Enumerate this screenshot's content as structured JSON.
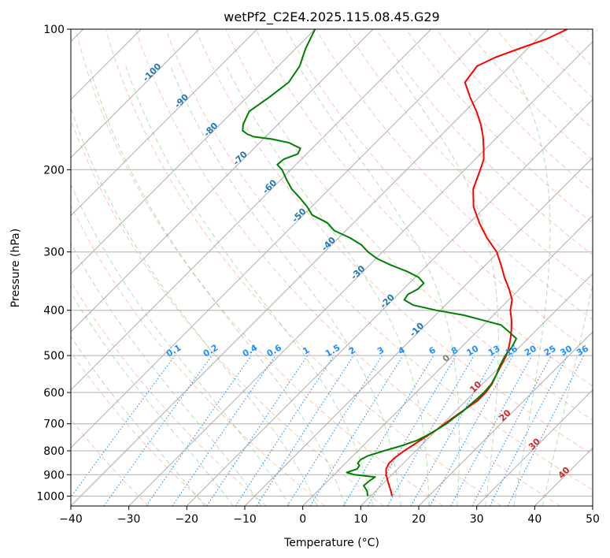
{
  "chart_data": {
    "type": "line",
    "subtype": "skew-t log-p diagram",
    "title": "wetPf2_C2E4.2025.115.08.45.G29",
    "xlabel": "Temperature (°C)",
    "ylabel": "Pressure (hPa)",
    "xlim": [
      -40,
      50
    ],
    "ylim": [
      1050,
      100
    ],
    "y_scale": "log",
    "grid": true,
    "x_ticks": [
      "−40",
      "−30",
      "−20",
      "−10",
      "0",
      "10",
      "20",
      "30",
      "40",
      "50"
    ],
    "x_tick_values": [
      -40,
      -30,
      -20,
      -10,
      0,
      10,
      20,
      30,
      40,
      50
    ],
    "y_ticks": [
      "100",
      "200",
      "300",
      "400",
      "500",
      "600",
      "700",
      "800",
      "900",
      "1000"
    ],
    "y_tick_values": [
      100,
      200,
      300,
      400,
      500,
      600,
      700,
      800,
      900,
      1000
    ],
    "colors": {
      "temperature": "#ff0000",
      "dewpoint": "#008000",
      "isotherm_label": "#1f77b4",
      "dry_adiabat": "#ff7f50",
      "moist_adiabat": "#2ca02c",
      "mixing_ratio": "#1e90ff",
      "isotherm_warm_label": "#d62728",
      "grid": "#b0b0b0"
    },
    "isotherm_labels": [
      "-100",
      "-90",
      "-80",
      "-70",
      "-60",
      "-50",
      "-40",
      "-30",
      "-20",
      "-10",
      "0",
      "10",
      "20",
      "30",
      "40"
    ],
    "isotherm_label_values": [
      -100,
      -90,
      -80,
      -70,
      -60,
      -50,
      -40,
      -30,
      -20,
      -10,
      0,
      10,
      20,
      30,
      40
    ],
    "mixing_ratio_labels": [
      "0.1",
      "0.2",
      "0.4",
      "0.6",
      "1",
      "1.5",
      "2",
      "3",
      "4",
      "6",
      "8",
      "10",
      "13",
      "16",
      "20",
      "25",
      "30",
      "36"
    ],
    "mixing_ratio_values": [
      0.1,
      0.2,
      0.4,
      0.6,
      1,
      1.5,
      2,
      3,
      4,
      6,
      8,
      10,
      13,
      16,
      20,
      25,
      30,
      36
    ],
    "series": [
      {
        "key": "temperature",
        "p": [
          1000,
          975,
          950,
          925,
          900,
          875,
          850,
          825,
          800,
          775,
          750,
          725,
          700,
          675,
          650,
          625,
          600,
          575,
          550,
          525,
          500,
          480,
          460,
          440,
          420,
          400,
          380,
          360,
          340,
          320,
          300,
          280,
          260,
          240,
          220,
          200,
          190,
          180,
          170,
          160,
          150,
          140,
          130,
          120,
          115,
          110,
          105,
          100
        ],
        "t": [
          13.7,
          12.6,
          11.4,
          10.2,
          9.0,
          8.0,
          7.5,
          7.6,
          8.0,
          8.6,
          9.2,
          9.9,
          10.3,
          10.8,
          11.4,
          12.0,
          12.0,
          11.6,
          10.8,
          10.0,
          9.2,
          8.2,
          7.0,
          5.6,
          4.0,
          2.1,
          0.6,
          -1.8,
          -4.6,
          -7.3,
          -10.3,
          -14.4,
          -18.3,
          -22.1,
          -25.2,
          -27.3,
          -28.5,
          -30.4,
          -32.5,
          -35.0,
          -38.0,
          -41.5,
          -45.0,
          -45.7,
          -44.1,
          -41.4,
          -38.4,
          -36.5
        ]
      },
      {
        "key": "dewpoint",
        "p": [
          1000,
          975,
          950,
          925,
          910,
          900,
          890,
          875,
          860,
          850,
          835,
          820,
          800,
          780,
          760,
          740,
          720,
          700,
          680,
          660,
          640,
          620,
          600,
          575,
          550,
          525,
          500,
          480,
          460,
          445,
          430,
          420,
          410,
          400,
          390,
          380,
          370,
          360,
          350,
          340,
          330,
          320,
          310,
          300,
          290,
          280,
          270,
          260,
          250,
          240,
          230,
          220,
          210,
          200,
          195,
          190,
          185,
          180,
          175,
          172,
          170,
          168,
          165,
          160,
          150,
          140,
          130,
          120,
          110,
          100
        ],
        "t": [
          9.5,
          8.5,
          7.0,
          7.2,
          7.5,
          3.5,
          1.8,
          3.0,
          2.8,
          2.1,
          2.0,
          2.6,
          4.5,
          6.7,
          8.4,
          9.3,
          10.0,
          10.6,
          10.9,
          11.3,
          11.4,
          11.6,
          11.7,
          11.5,
          10.8,
          9.8,
          9.0,
          8.7,
          8.0,
          5.6,
          3.0,
          -1.0,
          -5.0,
          -10.7,
          -15.5,
          -18.0,
          -18.3,
          -17.5,
          -17.5,
          -19.4,
          -22.5,
          -26.3,
          -29.8,
          -32.5,
          -34.8,
          -38.0,
          -42.0,
          -44.5,
          -48.5,
          -50.8,
          -53.5,
          -56.5,
          -59.0,
          -61.5,
          -63.2,
          -63.0,
          -61.5,
          -62.0,
          -65.0,
          -68.5,
          -72.0,
          -73.5,
          -75.0,
          -76.0,
          -77.2,
          -76.2,
          -75.4,
          -76.3,
          -78.3,
          -80.0
        ]
      }
    ]
  }
}
